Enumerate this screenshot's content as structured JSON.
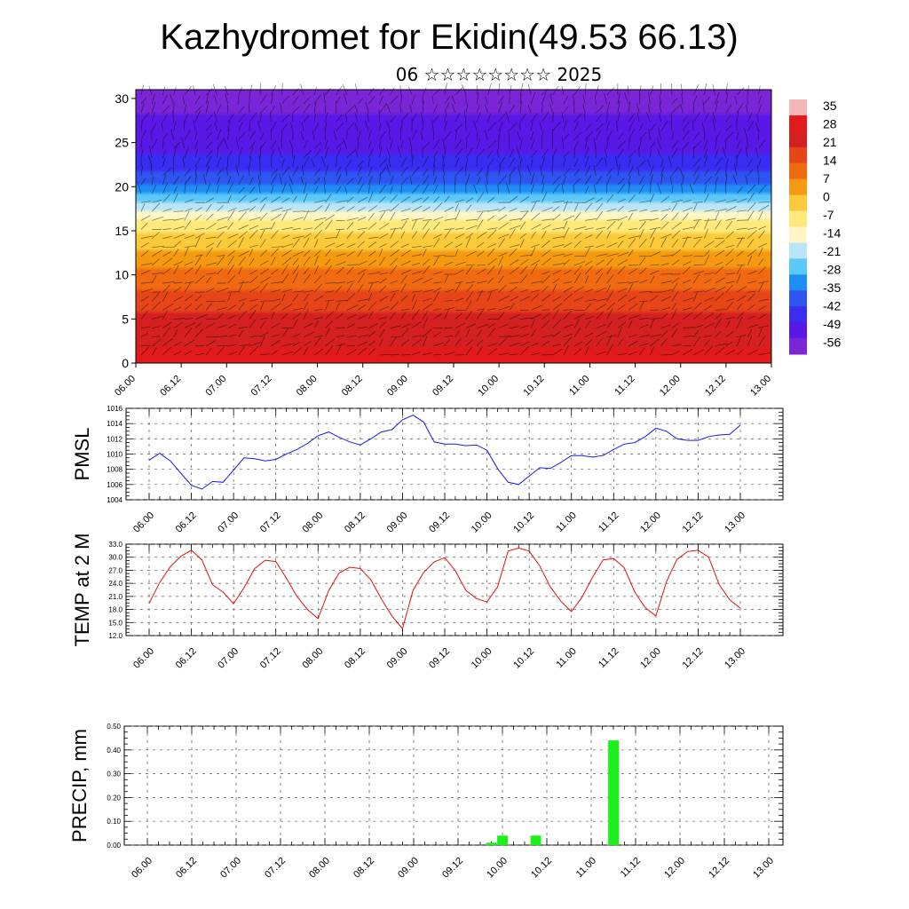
{
  "title": "Kazhydromet for Ekidin(49.53 66.13)",
  "subtitle": "06 ☆☆☆☆☆☆☆☆ 2025",
  "time_labels": [
    "06.00",
    "06.12",
    "07.00",
    "07.12",
    "08.00",
    "08.12",
    "09.00",
    "09.12",
    "10.00",
    "10.12",
    "11.00",
    "11.12",
    "12.00",
    "12.12",
    "13.00"
  ],
  "chart_data": [
    {
      "type": "heatmap",
      "yticks": [
        "0",
        "5",
        "10",
        "15",
        "20",
        "25",
        "30"
      ],
      "ylim": [
        0,
        31
      ],
      "colorbar": {
        "labels": [
          "35",
          "28",
          "21",
          "14",
          "7",
          "0",
          "-7",
          "-14",
          "-21",
          "-28",
          "-35",
          "-42",
          "-49",
          "-56"
        ],
        "colors": [
          "#f4b6b6",
          "#e21a1a",
          "#d42020",
          "#e64518",
          "#f06a12",
          "#f59a10",
          "#fbc93a",
          "#ffe97a",
          "#fff6c6",
          "#b8e5f8",
          "#5ac8f8",
          "#1e8ef5",
          "#2e55f0",
          "#3a2cf0",
          "#5a18e6",
          "#7a26d6"
        ]
      },
      "profile": [
        {
          "level": 0,
          "value": 28
        },
        {
          "level": 5,
          "value": 21
        },
        {
          "level": 10,
          "value": 10
        },
        {
          "level": 14,
          "value": -3
        },
        {
          "level": 17,
          "value": -14
        },
        {
          "level": 20,
          "value": -35
        },
        {
          "level": 24,
          "value": -49
        },
        {
          "level": 30,
          "value": -56
        }
      ]
    },
    {
      "type": "line",
      "ylabel": "PMSL",
      "yticks": [
        "1004",
        "1006",
        "1008",
        "1010",
        "1012",
        "1014",
        "1016"
      ],
      "ylim": [
        1004,
        1016
      ],
      "color": "#1a1ae6",
      "x": [
        0,
        3,
        6,
        9,
        12,
        15,
        18,
        21,
        24,
        27,
        30,
        33,
        36,
        39,
        42,
        45,
        48,
        51,
        54,
        57,
        60,
        63,
        66,
        69,
        72,
        75,
        78,
        81,
        84,
        87,
        90,
        93,
        96,
        99,
        102,
        105,
        108,
        111,
        114,
        117,
        120,
        123,
        126,
        129,
        132,
        135,
        138,
        141,
        144,
        147,
        150,
        153,
        156,
        159,
        162,
        165,
        168
      ],
      "values": [
        1009.2,
        1010.1,
        1009.1,
        1007.5,
        1005.9,
        1005.4,
        1006.4,
        1006.3,
        1007.9,
        1009.5,
        1009.4,
        1009.1,
        1009.3,
        1010.0,
        1010.6,
        1011.4,
        1012.4,
        1012.9,
        1012.2,
        1011.6,
        1011.2,
        1012.0,
        1012.9,
        1013.2,
        1014.5,
        1015.1,
        1014.2,
        1011.6,
        1011.3,
        1011.3,
        1011.1,
        1011.2,
        1010.5,
        1008.1,
        1006.3,
        1006.0,
        1007.1,
        1008.2,
        1008.1,
        1008.9,
        1009.8,
        1009.8,
        1009.6,
        1009.8,
        1010.6,
        1011.3,
        1011.5,
        1012.3,
        1013.4,
        1013.0,
        1012.0,
        1011.8,
        1011.8,
        1012.3,
        1012.5,
        1012.6,
        1013.8
      ]
    },
    {
      "type": "line",
      "ylabel": "TEMP at 2 M",
      "yticks": [
        "12.0",
        "15.0",
        "18.0",
        "21.0",
        "24.0",
        "27.0",
        "30.0",
        "33.0"
      ],
      "ylim": [
        12,
        33
      ],
      "color": "#e01010",
      "x": [
        0,
        3,
        6,
        9,
        12,
        15,
        18,
        21,
        24,
        27,
        30,
        33,
        36,
        39,
        42,
        45,
        48,
        51,
        54,
        57,
        60,
        63,
        66,
        69,
        72,
        75,
        78,
        81,
        84,
        87,
        90,
        93,
        96,
        99,
        102,
        105,
        108,
        111,
        114,
        117,
        120,
        123,
        126,
        129,
        132,
        135,
        138,
        141,
        144,
        147,
        150,
        153,
        156,
        159,
        162,
        165,
        168
      ],
      "values": [
        19.4,
        24.2,
        27.8,
        30.2,
        31.6,
        29.4,
        23.7,
        22.0,
        19.3,
        23.0,
        27.4,
        29.3,
        29.0,
        25.2,
        21.0,
        18.0,
        15.9,
        22.3,
        26.4,
        27.7,
        27.4,
        24.8,
        20.4,
        16.5,
        13.6,
        22.4,
        26.5,
        28.9,
        29.9,
        26.9,
        22.4,
        20.5,
        19.7,
        23.2,
        31.4,
        32.1,
        31.4,
        28.0,
        23.2,
        19.9,
        17.5,
        20.8,
        25.4,
        29.4,
        29.7,
        27.6,
        22.0,
        18.4,
        16.5,
        24.4,
        29.5,
        31.3,
        31.6,
        30.0,
        23.7,
        20.2,
        18.3
      ]
    },
    {
      "type": "bar",
      "ylabel": "PRECIP, mm",
      "yticks": [
        "0.00",
        "0.10",
        "0.20",
        "0.30",
        "0.40",
        "0.50"
      ],
      "ylim": [
        0,
        0.5
      ],
      "color": "#1af21a",
      "x": [
        93,
        96,
        105,
        126
      ],
      "values": [
        0.01,
        0.04,
        0.04,
        0.44
      ]
    }
  ]
}
